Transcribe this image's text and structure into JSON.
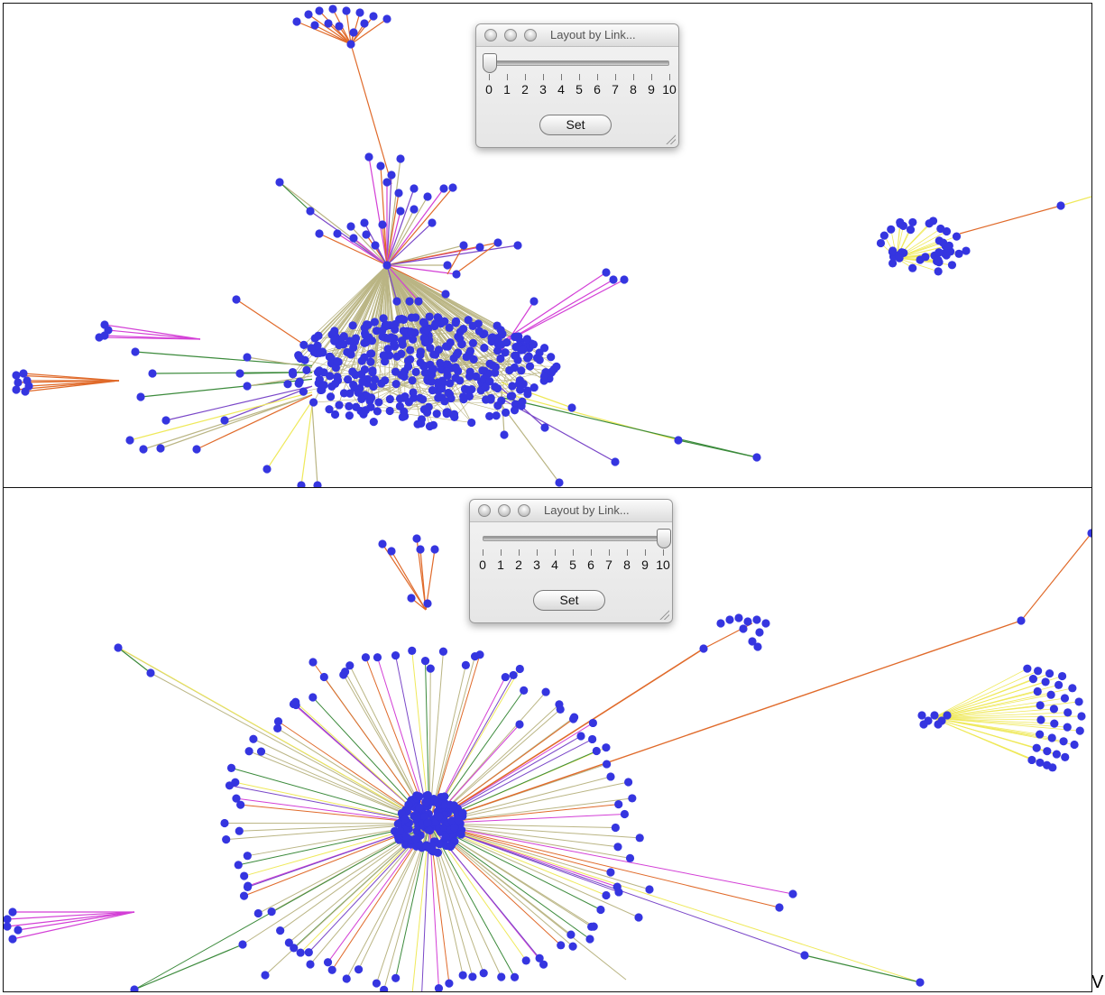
{
  "colors": {
    "node": "#3535e0",
    "edge_olive": "#bab584",
    "edge_orange": "#e06a2a",
    "edge_magenta": "#d33fd6",
    "edge_purple": "#7a47c8",
    "edge_green": "#3b8a3b",
    "edge_yellow": "#efe95a"
  },
  "top_panel": {
    "dialog": {
      "title": "Layout by Link...",
      "slider_value": 0,
      "slider_min": 0,
      "slider_max": 10,
      "tick_labels": [
        "0",
        "1",
        "2",
        "3",
        "4",
        "5",
        "6",
        "7",
        "8",
        "9",
        "10"
      ],
      "set_label": "Set"
    }
  },
  "bottom_panel": {
    "dialog": {
      "title": "Layout by Link...",
      "slider_value": 10,
      "slider_min": 0,
      "slider_max": 10,
      "tick_labels": [
        "0",
        "1",
        "2",
        "3",
        "4",
        "5",
        "6",
        "7",
        "8",
        "9",
        "10"
      ],
      "set_label": "Set"
    }
  },
  "stray_glyph": "V"
}
